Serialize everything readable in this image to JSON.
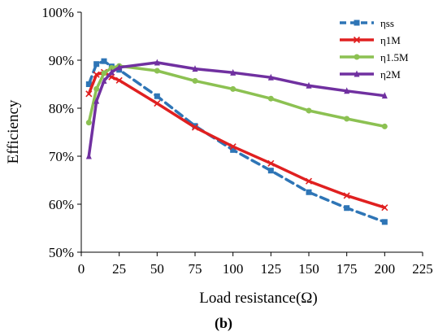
{
  "chart_data": {
    "type": "line",
    "xlabel": "Load resistance(Ω)",
    "ylabel": "Efficiency",
    "caption": "(b)",
    "xlim": [
      0,
      225
    ],
    "ylim": [
      50,
      100
    ],
    "x_ticks": [
      0,
      25,
      50,
      75,
      100,
      125,
      150,
      175,
      200,
      225
    ],
    "y_ticks": [
      50,
      60,
      70,
      80,
      90,
      100
    ],
    "y_tick_labels": [
      "50%",
      "60%",
      "70%",
      "80%",
      "90%",
      "100%"
    ],
    "grid": "none",
    "legend_position": "top-right",
    "series": [
      {
        "name": "ηss",
        "color": "#2e75b6",
        "marker": "square",
        "dash": "dashed",
        "points": [
          [
            5,
            85
          ],
          [
            10,
            89.2
          ],
          [
            15,
            89.8
          ],
          [
            20,
            88.7
          ],
          [
            25,
            88
          ],
          [
            50,
            82.5
          ],
          [
            75,
            76.3
          ],
          [
            100,
            71.3
          ],
          [
            125,
            67
          ],
          [
            150,
            62.5
          ],
          [
            175,
            59.2
          ],
          [
            200,
            56.3
          ]
        ]
      },
      {
        "name": "η1M",
        "color": "#e02020",
        "marker": "x",
        "dash": "solid",
        "points": [
          [
            5,
            83
          ],
          [
            10,
            87
          ],
          [
            15,
            87.5
          ],
          [
            20,
            86.5
          ],
          [
            25,
            85.8
          ],
          [
            50,
            81
          ],
          [
            75,
            76
          ],
          [
            100,
            72
          ],
          [
            125,
            68.5
          ],
          [
            150,
            64.8
          ],
          [
            175,
            61.8
          ],
          [
            200,
            59.3
          ]
        ]
      },
      {
        "name": "η1.5M",
        "color": "#8cc152",
        "marker": "circle",
        "dash": "solid",
        "points": [
          [
            5,
            77
          ],
          [
            10,
            84
          ],
          [
            15,
            87.3
          ],
          [
            20,
            88.4
          ],
          [
            25,
            88.8
          ],
          [
            50,
            87.8
          ],
          [
            75,
            85.7
          ],
          [
            100,
            84
          ],
          [
            125,
            82
          ],
          [
            150,
            79.5
          ],
          [
            175,
            77.8
          ],
          [
            200,
            76.2
          ]
        ]
      },
      {
        "name": "η2M",
        "color": "#7030a0",
        "marker": "triangle",
        "dash": "solid",
        "points": [
          [
            5,
            70
          ],
          [
            10,
            81.5
          ],
          [
            15,
            85.7
          ],
          [
            20,
            87.5
          ],
          [
            25,
            88.5
          ],
          [
            50,
            89.5
          ],
          [
            75,
            88.2
          ],
          [
            100,
            87.4
          ],
          [
            125,
            86.4
          ],
          [
            150,
            84.7
          ],
          [
            175,
            83.6
          ],
          [
            200,
            82.6
          ]
        ]
      }
    ]
  }
}
